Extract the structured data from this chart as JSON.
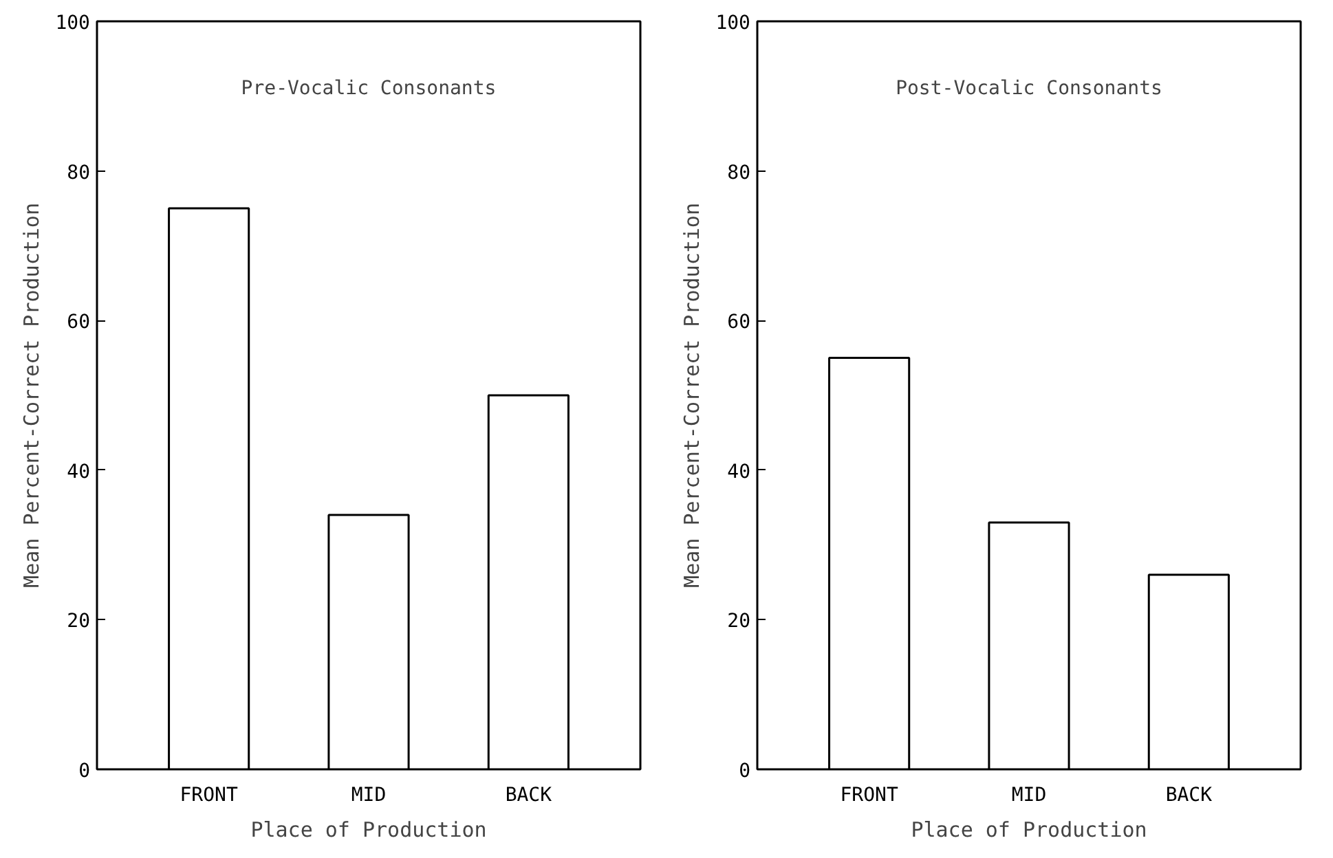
{
  "chart_data": [
    {
      "type": "bar",
      "title": "Pre-Vocalic Consonants",
      "xlabel": "Place of Production",
      "ylabel": "Mean Percent-Correct Production",
      "categories": [
        "FRONT",
        "MID",
        "BACK"
      ],
      "values": [
        75,
        34,
        50
      ],
      "color": "#ffffff",
      "ylim": [
        0,
        100
      ],
      "yticks": [
        0,
        20,
        40,
        60,
        80,
        100
      ],
      "grid": false
    },
    {
      "type": "bar",
      "title": "Post-Vocalic Consonants",
      "xlabel": "Place of Production",
      "ylabel": "Mean Percent-Correct Production",
      "categories": [
        "FRONT",
        "MID",
        "BACK"
      ],
      "values": [
        55,
        33,
        26
      ],
      "color": "#ffffff",
      "ylim": [
        0,
        100
      ],
      "yticks": [
        0,
        20,
        40,
        60,
        80,
        100
      ],
      "grid": false
    }
  ]
}
